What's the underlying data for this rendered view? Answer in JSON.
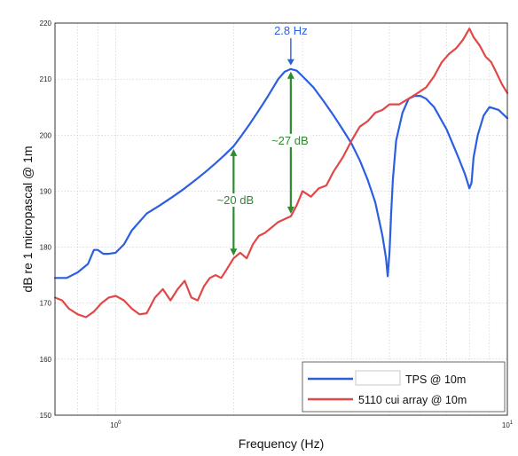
{
  "chart_data": {
    "type": "line",
    "xlabel": "Frequency (Hz)",
    "ylabel": "dB re 1 micropascal @ 1m",
    "xscale": "log",
    "xlim": [
      0.7,
      10
    ],
    "ylim": [
      150,
      220
    ],
    "yticks": [
      150,
      160,
      170,
      180,
      190,
      200,
      210,
      220
    ],
    "xticks": [
      {
        "value": 1,
        "label": "10",
        "sup": "0"
      },
      {
        "value": 10,
        "label": "10",
        "sup": "1"
      }
    ],
    "grid": true,
    "legend_position": "bottom-right",
    "series": [
      {
        "name": "TPS @ 10m",
        "color": "#2b5fe0",
        "x": [
          0.7,
          0.75,
          0.8,
          0.85,
          0.88,
          0.9,
          0.93,
          0.96,
          1.0,
          1.05,
          1.1,
          1.2,
          1.3,
          1.4,
          1.5,
          1.6,
          1.7,
          1.8,
          1.9,
          2.0,
          2.1,
          2.2,
          2.3,
          2.4,
          2.5,
          2.6,
          2.7,
          2.8,
          2.9,
          3.0,
          3.2,
          3.4,
          3.6,
          3.8,
          4.0,
          4.2,
          4.4,
          4.6,
          4.8,
          4.9,
          4.95,
          5.0,
          5.05,
          5.1,
          5.2,
          5.4,
          5.6,
          5.8,
          6.0,
          6.2,
          6.5,
          7.0,
          7.5,
          7.8,
          8.0,
          8.1,
          8.2,
          8.4,
          8.7,
          9.0,
          9.5,
          10.0
        ],
        "y": [
          174.5,
          174.5,
          175.5,
          177,
          179.5,
          179.5,
          178.8,
          178.8,
          179,
          180.5,
          183,
          186,
          187.5,
          189,
          190.5,
          192,
          193.5,
          195,
          196.5,
          198,
          200,
          202,
          204,
          206,
          208,
          210,
          211.3,
          211.8,
          211.5,
          210.5,
          208.5,
          206,
          203.5,
          201,
          198.5,
          195.5,
          192,
          188,
          182,
          178,
          174.8,
          179,
          186,
          192,
          199,
          204,
          206.5,
          207,
          207,
          206.5,
          205,
          201,
          196,
          193,
          190.5,
          191.5,
          196,
          200,
          203.5,
          205,
          204.5,
          203
        ]
      },
      {
        "name": "5110 cui array @ 10m",
        "color": "#e04848",
        "x": [
          0.7,
          0.73,
          0.76,
          0.8,
          0.84,
          0.88,
          0.92,
          0.96,
          1.0,
          1.05,
          1.1,
          1.15,
          1.2,
          1.26,
          1.32,
          1.38,
          1.44,
          1.5,
          1.56,
          1.62,
          1.68,
          1.74,
          1.8,
          1.86,
          1.92,
          2.0,
          2.08,
          2.16,
          2.24,
          2.32,
          2.4,
          2.5,
          2.6,
          2.7,
          2.8,
          2.9,
          3.0,
          3.15,
          3.3,
          3.45,
          3.6,
          3.8,
          4.0,
          4.2,
          4.4,
          4.6,
          4.8,
          5.0,
          5.3,
          5.6,
          5.9,
          6.2,
          6.5,
          6.8,
          7.1,
          7.4,
          7.7,
          8.0,
          8.2,
          8.5,
          8.8,
          9.1,
          9.4,
          9.7,
          10.0
        ],
        "y": [
          171,
          170.5,
          169,
          168,
          167.5,
          168.5,
          170,
          171,
          171.3,
          170.5,
          169,
          168,
          168.2,
          171,
          172.5,
          170.5,
          172.5,
          174,
          171,
          170.5,
          173,
          174.5,
          175,
          174.5,
          176,
          178,
          179,
          178,
          180.5,
          182,
          182.5,
          183.5,
          184.5,
          185,
          185.5,
          187.5,
          190,
          189,
          190.5,
          191,
          193.5,
          196,
          199,
          201.5,
          202.5,
          204,
          204.5,
          205.5,
          205.5,
          206.5,
          207.5,
          208.5,
          210.5,
          213,
          214.5,
          215.5,
          217,
          219,
          217.5,
          216,
          214,
          213,
          211,
          209,
          207.5
        ]
      }
    ],
    "annotations": [
      {
        "text": "2.8 Hz",
        "color": "#2b5fe0"
      },
      {
        "text": "~27 dB",
        "color": "#2e8b2e",
        "x": 2.8,
        "from": 185.5,
        "to": 211.8
      },
      {
        "text": "~20 dB",
        "color": "#2e8b2e",
        "x": 2.0,
        "from": 178,
        "to": 198
      }
    ]
  }
}
